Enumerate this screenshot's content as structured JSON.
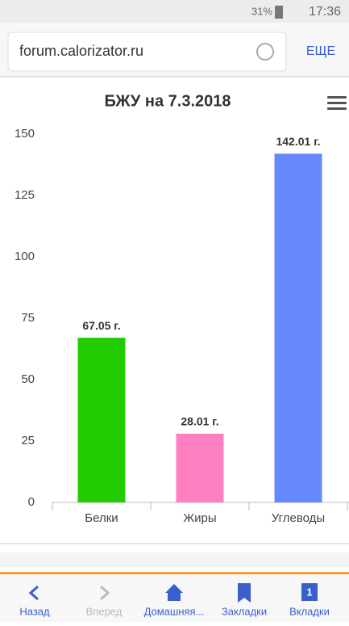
{
  "status_bar": {
    "battery": "31%",
    "time": "17:36"
  },
  "browser": {
    "url": "forum.calorizator.ru",
    "menu": "ЕЩЕ"
  },
  "chart_data": {
    "type": "bar",
    "title": "БЖУ на 7.3.2018",
    "categories": [
      "Белки",
      "Жиры",
      "Углеводы"
    ],
    "values": [
      67.05,
      28.01,
      142.01
    ],
    "value_labels": [
      "67.05 г.",
      "28.01 г.",
      "142.01 г."
    ],
    "colors": [
      "#22cc00",
      "#ff80c0",
      "#6688ff"
    ],
    "ylim": [
      0,
      150
    ],
    "yticks": [
      0,
      25,
      50,
      75,
      100,
      125,
      150
    ],
    "grid": false
  },
  "toolbar": {
    "items": [
      "Назад",
      "Вперед",
      "Домашняя...",
      "Закладки",
      "Вкладки"
    ],
    "tab_count": "1"
  }
}
